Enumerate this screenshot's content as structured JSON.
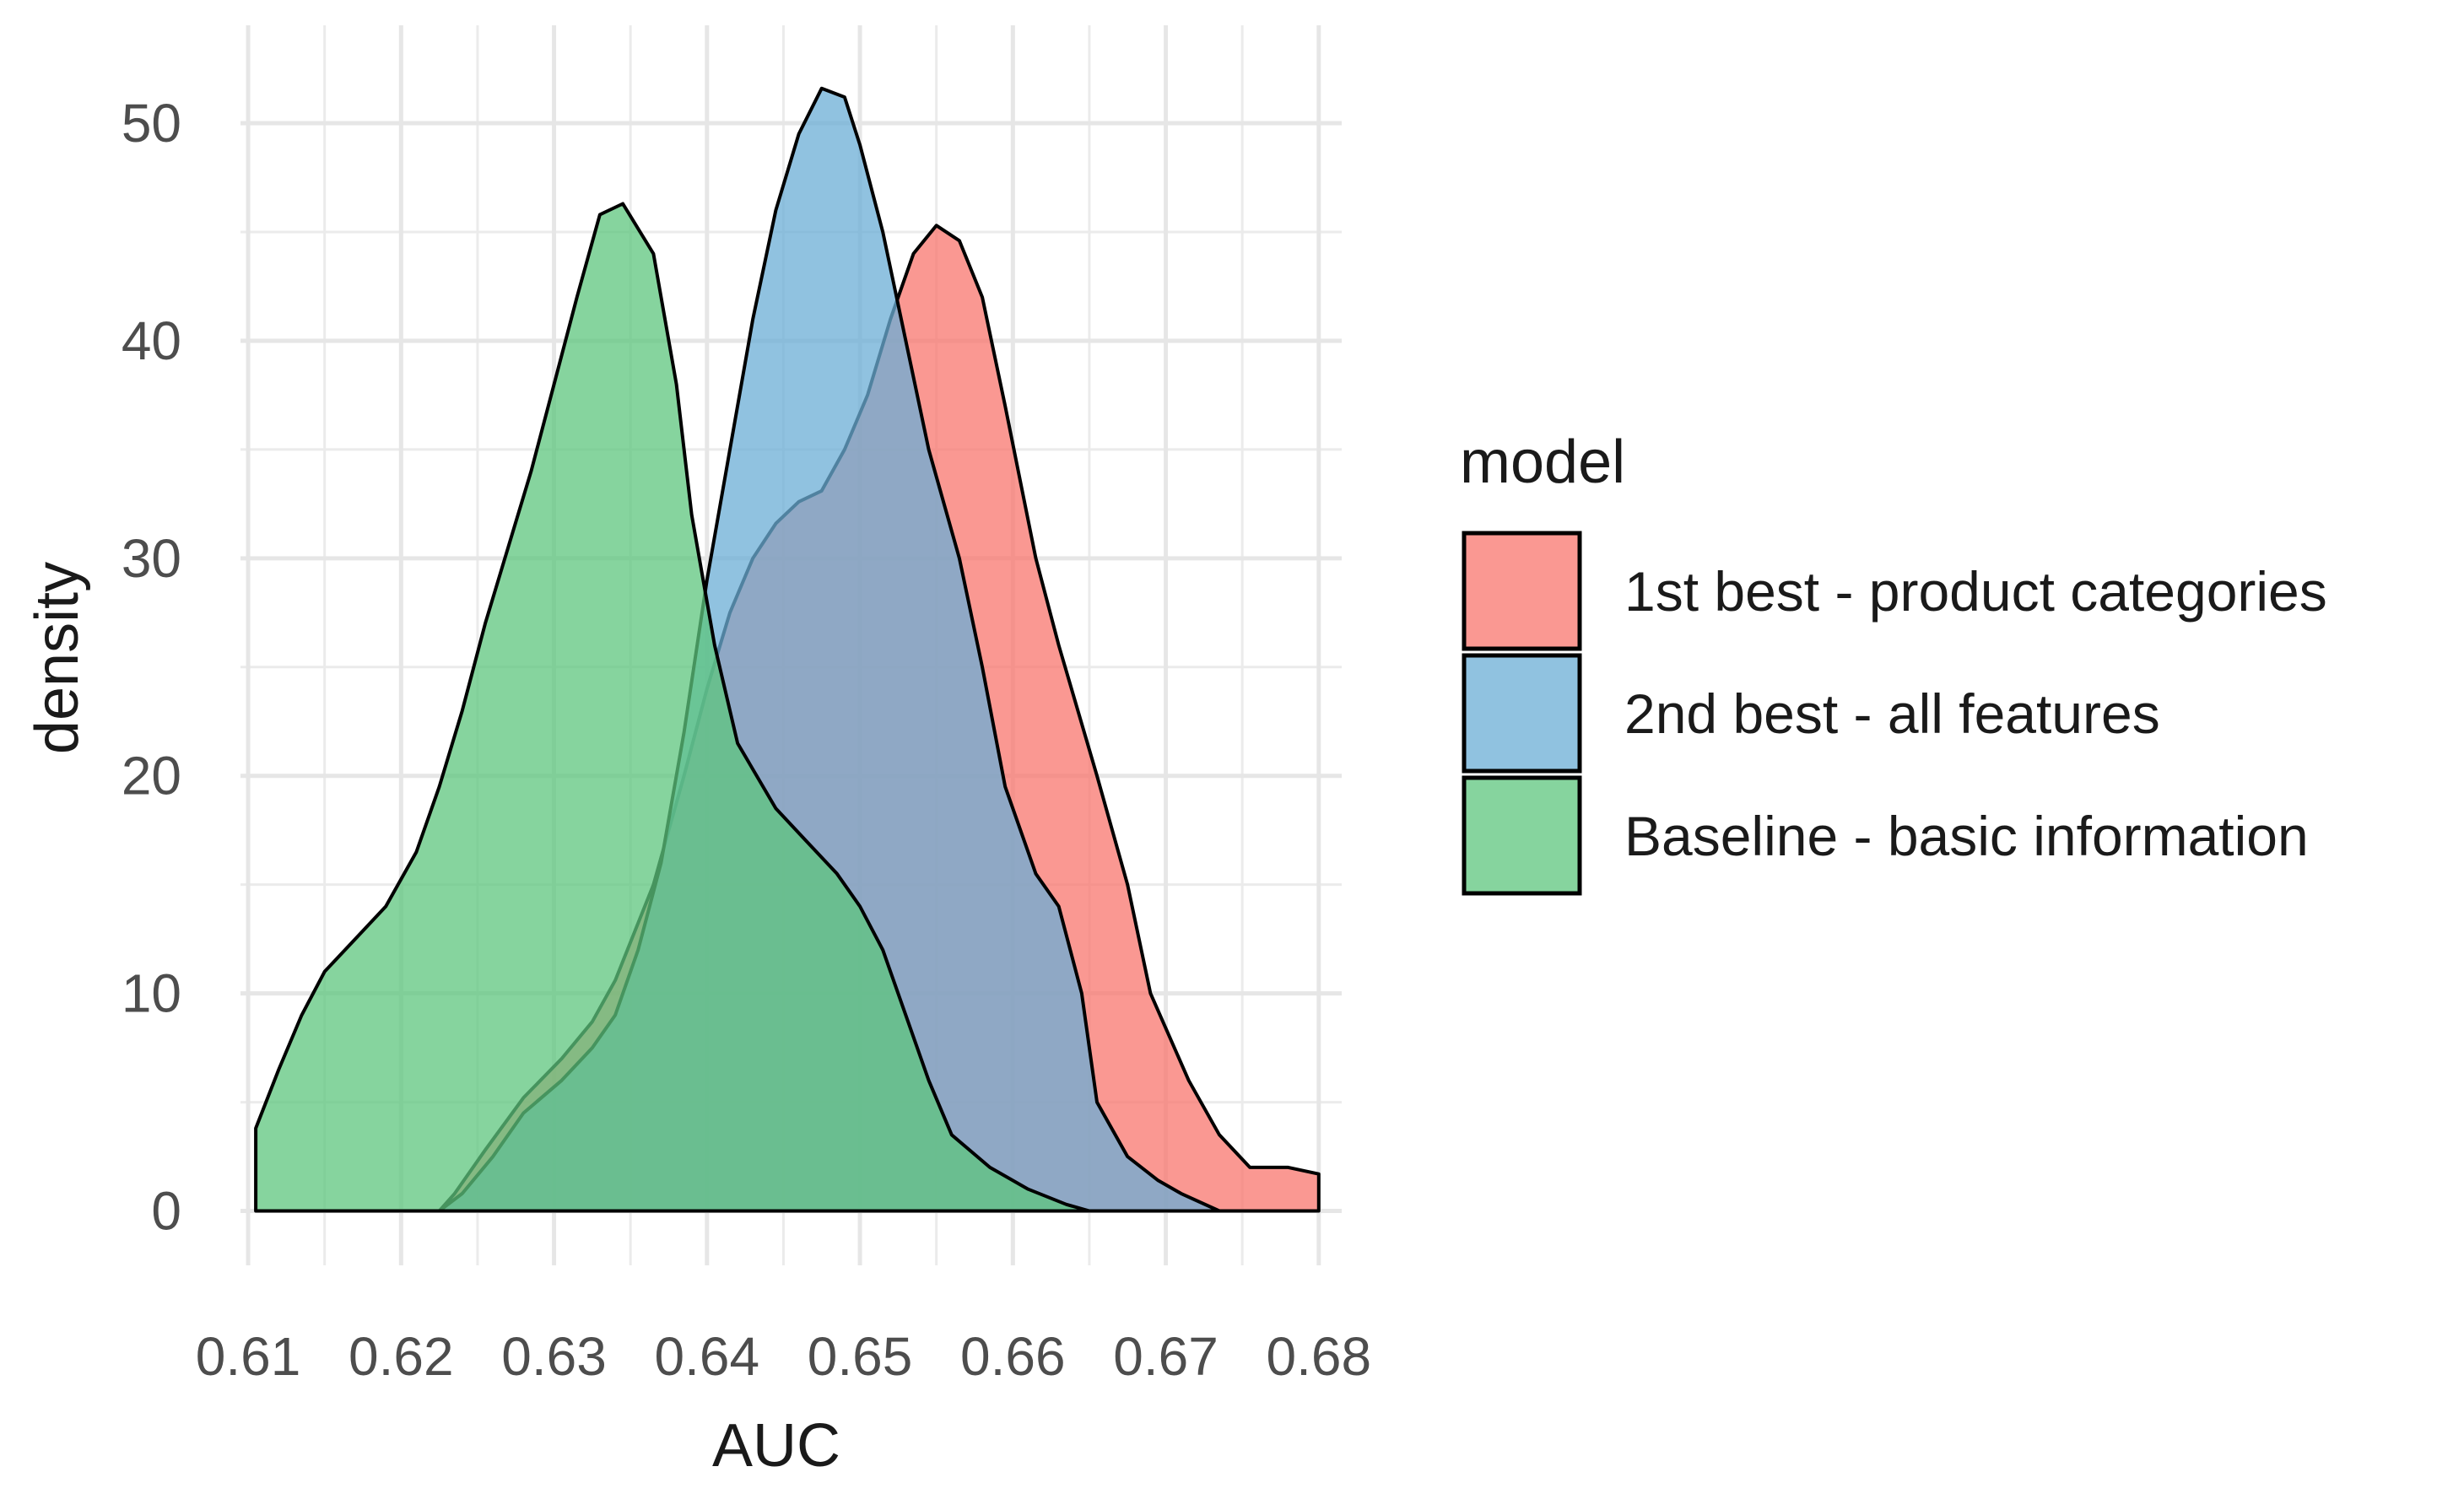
{
  "chart_data": {
    "type": "area",
    "subtype": "density",
    "xlabel": "AUC",
    "ylabel": "density",
    "xlim": [
      0.6095,
      0.6815
    ],
    "ylim": [
      -2.5,
      54.5
    ],
    "xticks": [
      0.61,
      0.62,
      0.63,
      0.64,
      0.65,
      0.66,
      0.67,
      0.68
    ],
    "xtick_labels": [
      "0.61",
      "0.62",
      "0.63",
      "0.64",
      "0.65",
      "0.66",
      "0.67",
      "0.68"
    ],
    "yticks": [
      0,
      10,
      20,
      30,
      40,
      50
    ],
    "ytick_labels": [
      "0",
      "10",
      "20",
      "30",
      "40",
      "50"
    ],
    "grid": true,
    "legend": {
      "title": "model",
      "position": "right"
    },
    "series": [
      {
        "name": "1st best - product categories",
        "color": "#F8766D",
        "points": [
          [
            0.6225,
            0
          ],
          [
            0.6235,
            0.8
          ],
          [
            0.6255,
            2.8
          ],
          [
            0.628,
            5.2
          ],
          [
            0.6305,
            7
          ],
          [
            0.6325,
            8.7
          ],
          [
            0.634,
            10.6
          ],
          [
            0.6365,
            15
          ],
          [
            0.6385,
            20
          ],
          [
            0.64,
            24
          ],
          [
            0.6415,
            27.5
          ],
          [
            0.643,
            30
          ],
          [
            0.6445,
            31.6
          ],
          [
            0.646,
            32.6
          ],
          [
            0.6475,
            33.1
          ],
          [
            0.649,
            35
          ],
          [
            0.6505,
            37.5
          ],
          [
            0.652,
            41
          ],
          [
            0.6535,
            44
          ],
          [
            0.655,
            45.3
          ],
          [
            0.6565,
            44.6
          ],
          [
            0.658,
            42
          ],
          [
            0.6595,
            37
          ],
          [
            0.6615,
            30
          ],
          [
            0.663,
            26
          ],
          [
            0.6655,
            20
          ],
          [
            0.6675,
            15
          ],
          [
            0.669,
            10
          ],
          [
            0.6715,
            6
          ],
          [
            0.6735,
            3.5
          ],
          [
            0.6755,
            2
          ],
          [
            0.678,
            2
          ],
          [
            0.68,
            1.7
          ],
          [
            0.68,
            0
          ]
        ]
      },
      {
        "name": "2nd best - all features",
        "color": "#6BAED6",
        "points": [
          [
            0.6225,
            0
          ],
          [
            0.624,
            0.8
          ],
          [
            0.626,
            2.5
          ],
          [
            0.628,
            4.5
          ],
          [
            0.6305,
            6
          ],
          [
            0.6325,
            7.5
          ],
          [
            0.634,
            9
          ],
          [
            0.6355,
            12
          ],
          [
            0.637,
            16
          ],
          [
            0.6385,
            22
          ],
          [
            0.64,
            29
          ],
          [
            0.6415,
            35
          ],
          [
            0.643,
            41
          ],
          [
            0.6445,
            46
          ],
          [
            0.646,
            49.5
          ],
          [
            0.6475,
            51.6
          ],
          [
            0.649,
            51.2
          ],
          [
            0.65,
            49
          ],
          [
            0.6515,
            45
          ],
          [
            0.653,
            40
          ],
          [
            0.6545,
            35
          ],
          [
            0.6565,
            30
          ],
          [
            0.658,
            25
          ],
          [
            0.6595,
            19.5
          ],
          [
            0.6615,
            15.5
          ],
          [
            0.663,
            14
          ],
          [
            0.6645,
            10
          ],
          [
            0.6655,
            5
          ],
          [
            0.6675,
            2.5
          ],
          [
            0.6695,
            1.4
          ],
          [
            0.671,
            0.8
          ],
          [
            0.6735,
            0
          ]
        ]
      },
      {
        "name": "Baseline - basic information",
        "color": "#5EC57E",
        "points": [
          [
            0.6105,
            3.8
          ],
          [
            0.612,
            6.5
          ],
          [
            0.6135,
            9
          ],
          [
            0.615,
            11
          ],
          [
            0.617,
            12.5
          ],
          [
            0.619,
            14
          ],
          [
            0.621,
            16.5
          ],
          [
            0.6225,
            19.5
          ],
          [
            0.624,
            23
          ],
          [
            0.6255,
            27
          ],
          [
            0.627,
            30.5
          ],
          [
            0.6285,
            34
          ],
          [
            0.63,
            38
          ],
          [
            0.6315,
            42
          ],
          [
            0.633,
            45.8
          ],
          [
            0.6345,
            46.3
          ],
          [
            0.6365,
            44
          ],
          [
            0.638,
            38
          ],
          [
            0.639,
            32
          ],
          [
            0.6405,
            26
          ],
          [
            0.642,
            21.5
          ],
          [
            0.6445,
            18.5
          ],
          [
            0.6465,
            17
          ],
          [
            0.6485,
            15.5
          ],
          [
            0.65,
            14
          ],
          [
            0.6515,
            12
          ],
          [
            0.653,
            9
          ],
          [
            0.6545,
            6
          ],
          [
            0.656,
            3.5
          ],
          [
            0.6585,
            2
          ],
          [
            0.661,
            1
          ],
          [
            0.6635,
            0.3
          ],
          [
            0.665,
            0
          ],
          [
            0.6105,
            0
          ]
        ]
      }
    ]
  }
}
